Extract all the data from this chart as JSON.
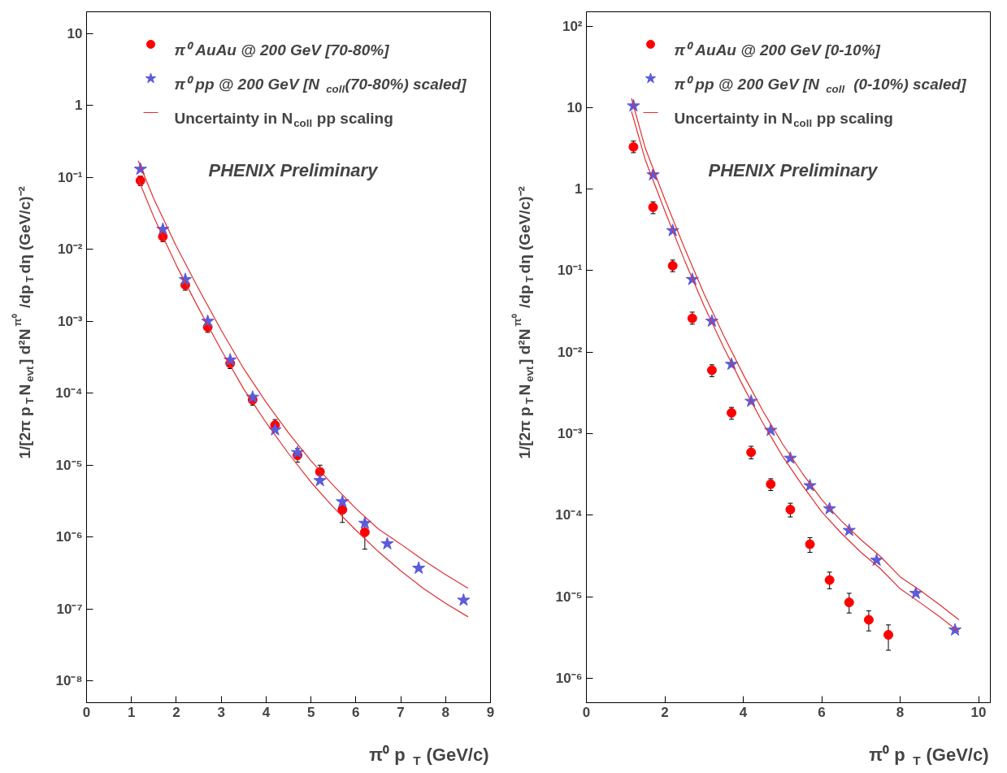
{
  "chart_data": [
    {
      "type": "scatter",
      "log": "y",
      "grid": false,
      "legend": "top right",
      "xlabel": "π⁰ p$_{T}$ (GeV/c)",
      "ylabel": "1/[2π p$_{T}$N$_{evt}$] d²N$^{π⁰}$/dp$_{T}$dη (GeV/c)⁻²",
      "xlim": [
        0,
        9
      ],
      "xticks": [
        0,
        1,
        2,
        3,
        4,
        5,
        6,
        7,
        8,
        9
      ],
      "ylim": [
        5e-09,
        20
      ],
      "yticks": [
        {
          "value": 1e-08,
          "label": "10⁻⁸"
        },
        {
          "value": 1e-07,
          "label": "10⁻⁷"
        },
        {
          "value": 1e-06,
          "label": "10⁻⁶"
        },
        {
          "value": 1e-05,
          "label": "10⁻⁵"
        },
        {
          "value": 0.0001,
          "label": "10⁻⁴"
        },
        {
          "value": 0.001,
          "label": "10⁻³"
        },
        {
          "value": 0.01,
          "label": "10⁻²"
        },
        {
          "value": 0.1,
          "label": "10⁻¹"
        },
        1,
        10
      ],
      "annotations": [
        "PHENIX Preliminary"
      ],
      "series": [
        {
          "name": "π⁰ AuAu @ 200 GeV [70-80%]",
          "type": "scatter",
          "marker": "circle",
          "color": "#ff0000",
          "x": [
            1.2,
            1.7,
            2.2,
            2.7,
            3.2,
            3.7,
            4.2,
            4.7,
            5.2,
            5.7,
            6.2
          ],
          "values": [
            0.09,
            0.015,
            0.0032,
            0.00083,
            0.00026,
            8.1e-05,
            3.6e-05,
            1.37e-05,
            8.1e-06,
            2.4e-06,
            1.17e-06
          ],
          "errors": [
            [
              0.077,
              0.104
            ],
            [
              0.0128,
              0.0175
            ],
            [
              0.0027,
              0.0037
            ],
            [
              0.0007,
              0.00097
            ],
            [
              0.00022,
              0.0003
            ],
            [
              6.8e-05,
              9.4e-05
            ],
            [
              3e-05,
              4.3e-05
            ],
            [
              1.1e-05,
              1.7e-05
            ],
            [
              6.5e-06,
              1e-05
            ],
            [
              1.6e-06,
              3.2e-06
            ],
            [
              6.8e-07,
              1.6e-06
            ]
          ]
        },
        {
          "name": "π⁰ pp @ 200 GeV [N$_{coll}$(70-80%) scaled]",
          "type": "scatter",
          "marker": "star",
          "color": "#5b5bdc",
          "x": [
            1.2,
            1.7,
            2.2,
            2.7,
            3.2,
            3.7,
            4.2,
            4.7,
            5.2,
            5.7,
            6.2,
            6.7,
            7.4,
            8.4
          ],
          "values": [
            0.13,
            0.019,
            0.0038,
            0.001,
            0.00029,
            8.8e-05,
            3.1e-05,
            1.5e-05,
            6.1e-06,
            3.1e-06,
            1.56e-06,
            8.1e-07,
            3.7e-07,
            1.33e-07
          ]
        },
        {
          "name": "Uncertainty in N$_{coll}$ pp scaling",
          "type": "line",
          "color": "#e03030",
          "x": [
            1.15,
            1.5,
            2,
            2.5,
            3,
            3.5,
            4,
            4.5,
            5,
            5.5,
            6,
            6.5,
            7,
            7.5,
            8,
            8.5
          ],
          "values": [
            0.17,
            0.05,
            0.011,
            0.0028,
            0.00075,
            0.00022,
            7.5e-05,
            2.8e-05,
            1.15e-05,
            5.2e-06,
            2.5e-06,
            1.3e-06,
            8e-07,
            4.8e-07,
            3e-07,
            1.95e-07
          ]
        },
        {
          "type": "line",
          "color": "#e03030",
          "x": [
            1.15,
            1.5,
            2,
            2.5,
            3,
            3.5,
            4,
            4.5,
            5,
            5.5,
            6,
            6.5,
            7,
            7.5,
            8,
            8.5
          ],
          "values": [
            0.095,
            0.028,
            0.006,
            0.0015,
            0.0004,
            0.000115,
            3.9e-05,
            1.45e-05,
            5.8e-06,
            2.6e-06,
            1.25e-06,
            6.3e-07,
            3.4e-07,
            1.95e-07,
            1.2e-07,
            7.8e-08
          ]
        }
      ]
    },
    {
      "type": "scatter",
      "log": "y",
      "grid": false,
      "legend": "top right",
      "xlabel": "π⁰ p$_{T}$ (GeV/c)",
      "ylabel": "1/[2π p$_{T}$N$_{evt}$] d²N$^{π⁰}$/dp$_{T}$dη (GeV/c)⁻²",
      "xlim": [
        0,
        10.3
      ],
      "xticks": [
        0,
        2,
        4,
        6,
        8,
        10
      ],
      "ylim": [
        5e-07,
        150
      ],
      "yticks": [
        {
          "value": 1e-06,
          "label": "10⁻⁶"
        },
        {
          "value": 1e-05,
          "label": "10⁻⁵"
        },
        {
          "value": 0.0001,
          "label": "10⁻⁴"
        },
        {
          "value": 0.001,
          "label": "10⁻³"
        },
        {
          "value": 0.01,
          "label": "10⁻²"
        },
        {
          "value": 0.1,
          "label": "10⁻¹"
        },
        1,
        10,
        {
          "value": 100,
          "label": "10²"
        }
      ],
      "annotations": [
        "PHENIX Preliminary"
      ],
      "series": [
        {
          "name": "π⁰ AuAu @ 200 GeV [0-10%]",
          "type": "scatter",
          "marker": "circle",
          "color": "#ff0000",
          "x": [
            1.2,
            1.7,
            2.2,
            2.7,
            3.2,
            3.7,
            4.2,
            4.7,
            5.2,
            5.7,
            6.2,
            6.7,
            7.2,
            7.7
          ],
          "values": [
            3.3,
            0.6,
            0.115,
            0.026,
            0.006,
            0.0018,
            0.00059,
            0.00024,
            0.000117,
            4.4e-05,
            1.6e-05,
            8.5e-06,
            5.2e-06,
            3.4e-06
          ],
          "errors": [
            [
              2.8,
              3.9
            ],
            [
              0.5,
              0.7
            ],
            [
              0.097,
              0.135
            ],
            [
              0.022,
              0.031
            ],
            [
              0.005,
              0.007
            ],
            [
              0.0015,
              0.0021
            ],
            [
              0.00049,
              0.0007
            ],
            [
              0.0002,
              0.00028
            ],
            [
              9.5e-05,
              0.00014
            ],
            [
              3.5e-05,
              5.3e-05
            ],
            [
              1.25e-05,
              2e-05
            ],
            [
              6.3e-06,
              1.1e-05
            ],
            [
              3.8e-06,
              6.7e-06
            ],
            [
              2.2e-06,
              4.5e-06
            ]
          ]
        },
        {
          "name": "π⁰ pp @ 200 GeV [N$_{coll}$  (0-10%) scaled]",
          "type": "scatter",
          "marker": "star",
          "color": "#5b5bdc",
          "x": [
            1.2,
            1.7,
            2.2,
            2.7,
            3.2,
            3.7,
            4.2,
            4.7,
            5.2,
            5.7,
            6.2,
            6.7,
            7.4,
            8.4,
            9.4
          ],
          "values": [
            10.5,
            1.5,
            0.31,
            0.078,
            0.024,
            0.0071,
            0.0025,
            0.0011,
            0.0005,
            0.00023,
            0.00012,
            6.5e-05,
            2.8e-05,
            1.1e-05,
            3.9e-06
          ]
        },
        {
          "name": "Uncertainty in N$_{coll}$ pp scaling",
          "type": "line",
          "color": "#e03030",
          "x": [
            1.15,
            1.5,
            2,
            2.5,
            3,
            3.5,
            4,
            4.5,
            5,
            5.5,
            6,
            6.5,
            7,
            7.5,
            8,
            8.5,
            9,
            9.5
          ],
          "values": [
            13,
            3.2,
            0.75,
            0.19,
            0.052,
            0.016,
            0.0053,
            0.0019,
            0.00075,
            0.00033,
            0.000155,
            8.5e-05,
            5e-05,
            3.1e-05,
            1.75e-05,
            1.2e-05,
            8e-06,
            5.2e-06
          ]
        },
        {
          "type": "line",
          "color": "#e03030",
          "x": [
            1.15,
            1.5,
            2,
            2.5,
            3,
            3.5,
            4,
            4.5,
            5,
            5.5,
            6,
            6.5,
            7,
            7.5,
            8,
            8.5,
            9,
            9.5
          ],
          "values": [
            9,
            2.3,
            0.54,
            0.135,
            0.037,
            0.0115,
            0.0038,
            0.00135,
            0.00053,
            0.000235,
            0.00011,
            6e-05,
            3.5e-05,
            2.2e-05,
            1.25e-05,
            8.5e-06,
            5.7e-06,
            3.7e-06
          ]
        }
      ]
    }
  ]
}
